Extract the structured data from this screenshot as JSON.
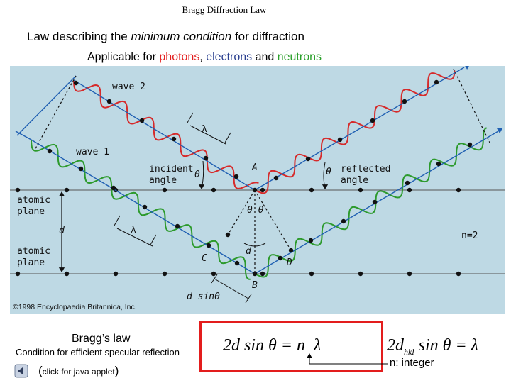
{
  "header": {
    "title": "Bragg Diffraction Law"
  },
  "subtitle": {
    "prefix": "Law describing the ",
    "emphasis": "minimum condition",
    "suffix": " for diffraction"
  },
  "applicable": {
    "prefix": "Applicable for ",
    "photons": "photons",
    "sep": ", ",
    "electrons": "electrons",
    "and": " and ",
    "neutrons": "neutrons"
  },
  "figure": {
    "wave2": "wave 2",
    "wave1": "wave 1",
    "lambda": "λ",
    "incident": "incident",
    "angle": "angle",
    "theta": "θ",
    "theta_pair": "θ θ",
    "point_a": "A",
    "point_b": "B",
    "point_c": "C",
    "point_d": "D",
    "reflected": "reflected",
    "atomic": "atomic",
    "plane": "plane",
    "d": "d",
    "n2": "n=2",
    "d_sine": "d sinθ",
    "copyright": "©1998 Encyclopaedia Britannica, Inc."
  },
  "colors": {
    "figure_bg": "#bed9e4",
    "wave_blue": "#1f5fb2",
    "wave_red": "#d62a2a",
    "wave_green": "#2c9a2c",
    "photons": "#e31d1d",
    "electrons": "#2a3f8f",
    "neutrons": "#2ca02c",
    "formula_border": "#e31d1d"
  },
  "bottom": {
    "braggs_law": "Bragg’s law",
    "condition": "Condition for efficient specular reflection",
    "applet_open": "(",
    "applet_text": "click for java applet",
    "applet_close": ")",
    "formula_lhs": "2d sin θ = n",
    "formula_lambda": "λ",
    "hkl_prefix": "2d",
    "hkl_sub": "hkl",
    "hkl_rest": " sin θ = λ",
    "integer_note": "n: integer",
    "applet_icon": "speaker-icon"
  }
}
